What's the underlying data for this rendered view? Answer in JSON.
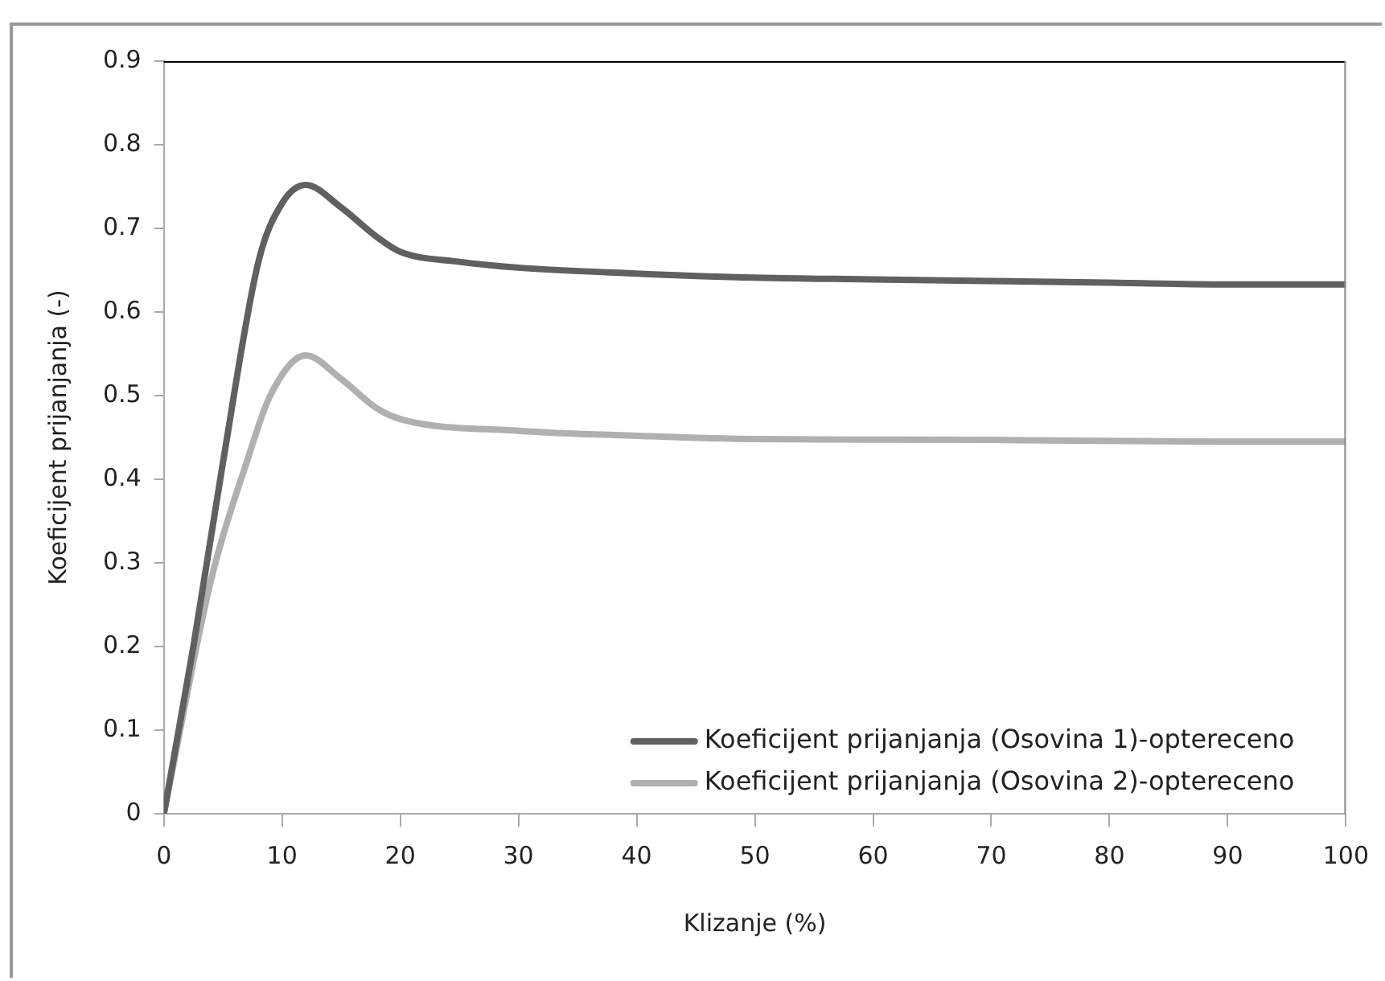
{
  "chart_data": {
    "type": "line",
    "xlabel": "Klizanje (%)",
    "ylabel": "Koeficijent prijanjanja (-)",
    "xlim": [
      0,
      100
    ],
    "xticks": [
      0,
      10,
      20,
      30,
      40,
      50,
      60,
      70,
      80,
      90,
      100
    ],
    "ylim": [
      0,
      0.9
    ],
    "yticks": [
      0,
      0.1,
      0.2,
      0.3,
      0.4,
      0.5,
      0.6,
      0.7,
      0.8,
      0.9
    ],
    "grid": false,
    "legend": "bottom right",
    "marker": "none",
    "line_style": "solid",
    "series": [
      {
        "name": "Koeficijent prijanjanja (Osovina 1)-optereceno",
        "color": "#606060",
        "x": [
          0,
          2.5,
          5,
          8,
          10,
          12,
          15,
          18,
          20,
          25,
          30,
          40,
          50,
          60,
          70,
          80,
          90,
          100
        ],
        "values": [
          0,
          0.2,
          0.42,
          0.66,
          0.73,
          0.752,
          0.725,
          0.69,
          0.672,
          0.66,
          0.653,
          0.646,
          0.641,
          0.639,
          0.637,
          0.635,
          0.633,
          0.633
        ]
      },
      {
        "name": "Koeficijent prijanjanja (Osovina 2)-optereceno",
        "color": "#b0b0b0",
        "x": [
          0,
          4,
          7,
          9,
          12,
          15,
          18,
          20,
          30,
          40,
          50,
          70,
          90,
          100
        ],
        "values": [
          0,
          0.28,
          0.42,
          0.5,
          0.548,
          0.52,
          0.485,
          0.472,
          0.458,
          0.452,
          0.448,
          0.447,
          0.445,
          0.445
        ]
      }
    ]
  }
}
